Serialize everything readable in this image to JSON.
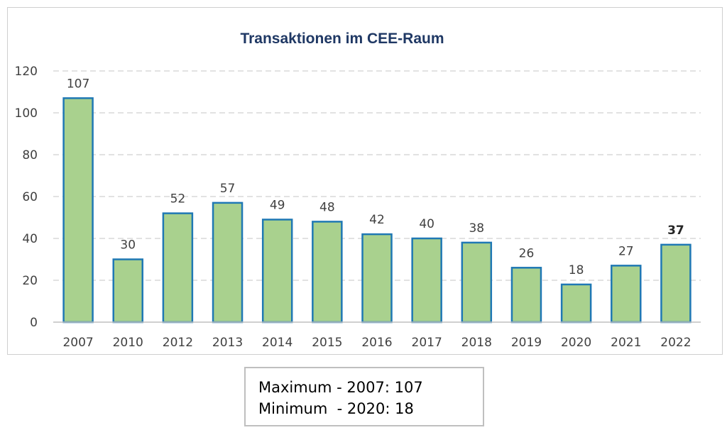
{
  "chart_data": {
    "type": "bar",
    "title": "Transaktionen im CEE-Raum",
    "xlabel": "",
    "ylabel": "",
    "categories": [
      "2007",
      "2010",
      "2012",
      "2013",
      "2014",
      "2015",
      "2016",
      "2017",
      "2018",
      "2019",
      "2020",
      "2021",
      "2022"
    ],
    "values": [
      107,
      30,
      52,
      57,
      49,
      48,
      42,
      40,
      38,
      26,
      18,
      27,
      37
    ],
    "ylim": [
      0,
      120
    ],
    "yticks": [
      0,
      20,
      40,
      60,
      80,
      100,
      120
    ],
    "grid": true,
    "legend": "none",
    "colors": {
      "bar_fill": "#a9d18e",
      "bar_stroke": "#1f78b4",
      "title": "#1f3864"
    },
    "bold_label_index": 12
  },
  "stats": {
    "max_line": "Maximum - 2007: 107",
    "min_line": "Minimum  - 2020: 18"
  }
}
